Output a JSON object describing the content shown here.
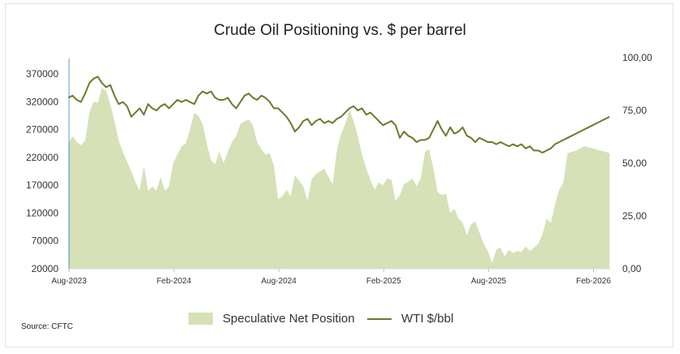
{
  "chart_data": {
    "type": "area",
    "title": "Crude Oil Positioning vs. $ per barrel",
    "source": "Source: CFTC",
    "x_tick_labels": [
      "Aug-2023",
      "Feb-2024",
      "Aug-2024",
      "Feb-2025",
      "Aug-2025",
      "Feb-2026"
    ],
    "x_range": [
      "2023-08",
      "2026-03"
    ],
    "y_left": {
      "ticks": [
        "370000",
        "320000",
        "270000",
        "220000",
        "170000",
        "120000",
        "70000",
        "20000"
      ],
      "range": [
        20000,
        370000
      ]
    },
    "y_right": {
      "ticks": [
        "100,00",
        "75,00",
        "50,00",
        "25,00",
        "0,00"
      ],
      "range": [
        0,
        100
      ]
    },
    "grid": false,
    "legend_position": "bottom",
    "colors": {
      "area": "#d6e1b7",
      "line": "#6b7b2c",
      "axis": "#5b9bd5"
    },
    "series": [
      {
        "name": "Speculative Net Position",
        "type": "area",
        "axis": "left",
        "x": [
          2023.58,
          2023.6,
          2023.62,
          2023.64,
          2023.66,
          2023.68,
          2023.7,
          2023.72,
          2023.74,
          2023.76,
          2023.78,
          2023.8,
          2023.82,
          2023.84,
          2023.86,
          2023.88,
          2023.9,
          2023.92,
          2023.94,
          2023.96,
          2023.98,
          2024.0,
          2024.02,
          2024.04,
          2024.06,
          2024.08,
          2024.1,
          2024.12,
          2024.14,
          2024.16,
          2024.18,
          2024.2,
          2024.22,
          2024.24,
          2024.26,
          2024.28,
          2024.3,
          2024.32,
          2024.34,
          2024.36,
          2024.38,
          2024.4,
          2024.42,
          2024.44,
          2024.46,
          2024.48,
          2024.5,
          2024.52,
          2024.54,
          2024.56,
          2024.58,
          2024.6,
          2024.62,
          2024.64,
          2024.66,
          2024.68,
          2024.7,
          2024.72,
          2024.74,
          2024.76,
          2024.78,
          2024.8,
          2024.82,
          2024.84,
          2024.86,
          2024.88,
          2024.9,
          2024.92,
          2024.94,
          2024.96,
          2024.98,
          2025.0,
          2025.02,
          2025.04,
          2025.06,
          2025.08,
          2025.1,
          2025.12,
          2025.14,
          2025.16,
          2025.18,
          2025.2,
          2025.22,
          2025.24,
          2025.26,
          2025.28,
          2025.3,
          2025.32,
          2025.34,
          2025.36,
          2025.38,
          2025.4,
          2025.42,
          2025.44,
          2025.46,
          2025.48,
          2025.5,
          2025.52,
          2025.54,
          2025.56,
          2025.58,
          2025.6,
          2025.62,
          2025.64,
          2025.66,
          2025.68,
          2025.7,
          2025.72,
          2025.74,
          2025.76,
          2025.78,
          2025.8,
          2025.82,
          2025.84,
          2025.86,
          2025.88,
          2025.9,
          2025.92,
          2025.94,
          2025.96,
          2025.98,
          2026.0,
          2026.02,
          2026.04,
          2026.06,
          2026.08,
          2026.1,
          2026.12,
          2026.14,
          2026.16
        ],
        "values": [
          245000,
          258000,
          248000,
          242000,
          250000,
          300000,
          320000,
          318000,
          345000,
          340000,
          315000,
          285000,
          250000,
          230000,
          212000,
          195000,
          175000,
          160000,
          205000,
          160000,
          168000,
          160000,
          185000,
          160000,
          168000,
          210000,
          225000,
          240000,
          245000,
          270000,
          300000,
          295000,
          280000,
          245000,
          215000,
          208000,
          230000,
          210000,
          230000,
          248000,
          258000,
          280000,
          285000,
          288000,
          278000,
          248000,
          235000,
          225000,
          228000,
          205000,
          145000,
          150000,
          162000,
          150000,
          188000,
          178000,
          168000,
          142000,
          180000,
          190000,
          195000,
          200000,
          185000,
          172000,
          232000,
          262000,
          280000,
          305000,
          285000,
          258000,
          225000,
          200000,
          180000,
          162000,
          175000,
          170000,
          182000,
          180000,
          142000,
          152000,
          172000,
          176000,
          182000,
          168000,
          182000,
          230000,
          235000,
          200000,
          158000,
          152000,
          155000,
          120000,
          128000,
          110000,
          103000,
          80000,
          100000,
          105000,
          85000,
          65000,
          52000,
          30000,
          55000,
          58000,
          42000,
          54000,
          48000,
          52000,
          50000,
          60000,
          52000,
          58000,
          65000,
          82000,
          110000,
          102000,
          135000,
          162000,
          175000,
          228000,
          230000,
          232000,
          236000,
          240000,
          238000,
          236000,
          234000,
          232000,
          230000,
          228000
        ]
      },
      {
        "name": "WTI $/bbl",
        "type": "line",
        "axis": "right",
        "x": [
          2023.58,
          2023.6,
          2023.62,
          2023.64,
          2023.66,
          2023.68,
          2023.7,
          2023.72,
          2023.74,
          2023.76,
          2023.78,
          2023.8,
          2023.82,
          2023.84,
          2023.86,
          2023.88,
          2023.9,
          2023.92,
          2023.94,
          2023.96,
          2023.98,
          2024.0,
          2024.02,
          2024.04,
          2024.06,
          2024.08,
          2024.1,
          2024.12,
          2024.14,
          2024.16,
          2024.18,
          2024.2,
          2024.22,
          2024.24,
          2024.26,
          2024.28,
          2024.3,
          2024.32,
          2024.34,
          2024.36,
          2024.38,
          2024.4,
          2024.42,
          2024.44,
          2024.46,
          2024.48,
          2024.5,
          2024.52,
          2024.54,
          2024.56,
          2024.58,
          2024.6,
          2024.62,
          2024.64,
          2024.66,
          2024.68,
          2024.7,
          2024.72,
          2024.74,
          2024.76,
          2024.78,
          2024.8,
          2024.82,
          2024.84,
          2024.86,
          2024.88,
          2024.9,
          2024.92,
          2024.94,
          2024.96,
          2024.98,
          2025.0,
          2025.02,
          2025.04,
          2025.06,
          2025.08,
          2025.1,
          2025.12,
          2025.14,
          2025.16,
          2025.18,
          2025.2,
          2025.22,
          2025.24,
          2025.26,
          2025.28,
          2025.3,
          2025.32,
          2025.34,
          2025.36,
          2025.38,
          2025.4,
          2025.42,
          2025.44,
          2025.46,
          2025.48,
          2025.5,
          2025.52,
          2025.54,
          2025.56,
          2025.58,
          2025.6,
          2025.62,
          2025.64,
          2025.66,
          2025.68,
          2025.7,
          2025.72,
          2025.74,
          2025.76,
          2025.78,
          2025.8,
          2025.82,
          2025.84,
          2025.86,
          2025.88,
          2025.9,
          2025.92,
          2025.94,
          2025.96,
          2025.98,
          2026.0,
          2026.02,
          2026.04,
          2026.06,
          2026.08,
          2026.1,
          2026.12,
          2026.14,
          2026.16
        ],
        "values": [
          81,
          82,
          80,
          79,
          83,
          88,
          90,
          91,
          88,
          86,
          87,
          82,
          78,
          79,
          77,
          72,
          74,
          76,
          73,
          78,
          76,
          75,
          77,
          78,
          76,
          78,
          80,
          79,
          80,
          79,
          78,
          82,
          84,
          83,
          84,
          81,
          80,
          80,
          81,
          78,
          76,
          79,
          82,
          83,
          81,
          80,
          82,
          81,
          79,
          76,
          76,
          74,
          72,
          69,
          65,
          67,
          70,
          71,
          68,
          70,
          71,
          69,
          70,
          69,
          71,
          72,
          74,
          76,
          77,
          75,
          76,
          73,
          74,
          72,
          70,
          68,
          69,
          70,
          68,
          62,
          65,
          63,
          62,
          60,
          61,
          61,
          62,
          66,
          70,
          66,
          63,
          67,
          64,
          65,
          67,
          63,
          62,
          60,
          62,
          61,
          60,
          60,
          59,
          60,
          59,
          58,
          59,
          58,
          59,
          57,
          58,
          56,
          56,
          55,
          56,
          57,
          59,
          60,
          61,
          62,
          63,
          64,
          65,
          66,
          67,
          68,
          69,
          70,
          71,
          72
        ]
      }
    ]
  }
}
